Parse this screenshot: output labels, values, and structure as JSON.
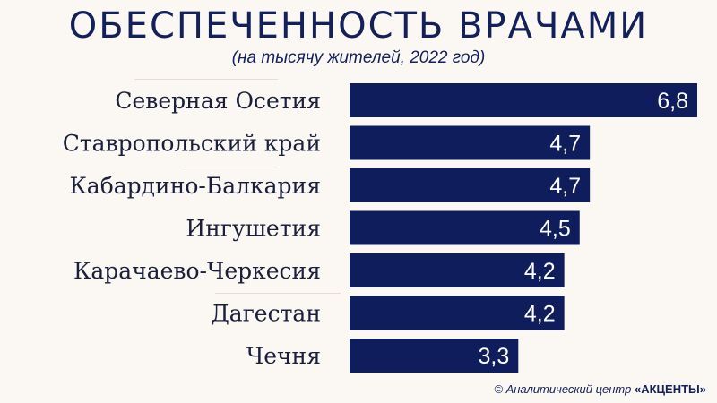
{
  "title": "ОБЕСПЕЧЕННОСТЬ ВРАЧАМИ",
  "subtitle": "(на тысячу жителей, 2022 год)",
  "footer": {
    "prefix": "©  Аналитический центр",
    "brand": "«АКЦЕНТЫ»"
  },
  "colors": {
    "bar": "#0f1d5c",
    "background": "#fbf8f4"
  },
  "chart_data": {
    "type": "bar",
    "orientation": "horizontal",
    "categories": [
      "Северная Осетия",
      "Ставропольский край",
      "Кабардино-Балкария",
      "Ингушетия",
      "Карачаево-Черкесия",
      "Дагестан",
      "Чечня"
    ],
    "values": [
      6.8,
      4.7,
      4.7,
      4.5,
      4.2,
      4.2,
      3.3
    ],
    "value_labels": [
      "6,8",
      "4,7",
      "4,7",
      "4,5",
      "4,2",
      "4,2",
      "3,3"
    ],
    "xlim": [
      0,
      6.8
    ],
    "grid": false,
    "legend": "none"
  }
}
